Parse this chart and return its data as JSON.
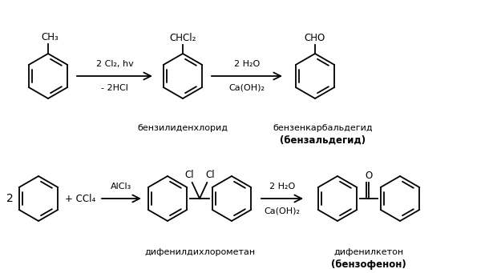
{
  "bg_color": "#ffffff",
  "figsize": [
    6.2,
    3.41
  ],
  "dpi": 100,
  "top_row": {
    "toluene_label": "CH₃",
    "arrow1_top": "2 Cl₂, hv",
    "arrow1_bot": "- 2HCl",
    "benzaldichloride_label": "CHCl₂",
    "benzaldichloride_name": "бензилиденхлорид",
    "arrow2_top": "2 H₂O",
    "arrow2_bot": "Ca(OH)₂",
    "benzaldehyde_label": "CHO",
    "benzaldehyde_name1": "бензенкарбальдегид",
    "benzaldehyde_name2": "(бензальдегид)"
  },
  "bot_row": {
    "coeff": "2",
    "plus": "+ CCl₄",
    "arrow1_top": "AlCl₃",
    "dichloro_label_l": "Cl",
    "dichloro_label_r": "Cl",
    "dichloro_name": "дифенилдихлорометан",
    "arrow2_top": "2 H₂O",
    "arrow2_bot": "Ca(OH)₂",
    "benzophenone_label": "O",
    "benzophenone_name1": "дифенилкетон",
    "benzophenone_name2": "(бензофенон)"
  }
}
